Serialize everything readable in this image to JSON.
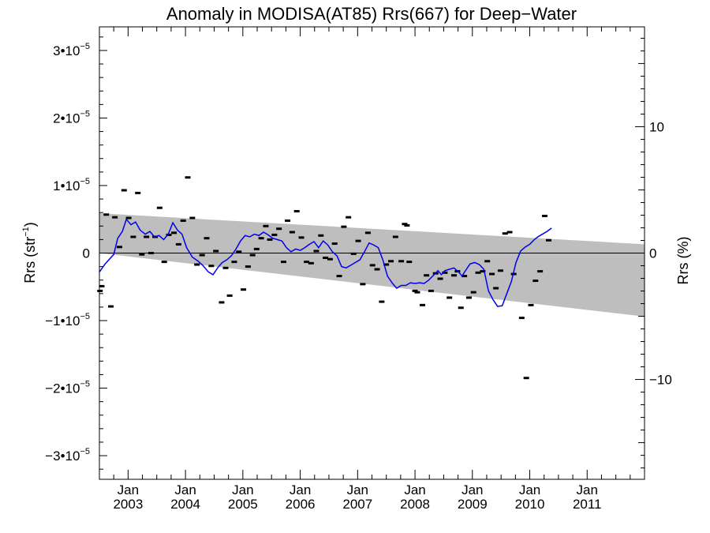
{
  "chart_data": {
    "type": "scatter",
    "title": "Anomaly in MODISA(AT85) Rrs(667) for Deep−Water",
    "ylabel": "Rrs (str",
    "ylabel_sup": "−1",
    "ylabel_tail": ")",
    "y2label": "Rrs (%)",
    "xlim": [
      2002.5,
      2012.0
    ],
    "ylim": [
      -3.35e-05,
      3.35e-05
    ],
    "y2lim": [
      -17.9,
      17.9
    ],
    "grid": false,
    "x_ticks": [
      {
        "line1": "Jan",
        "line2": "2003",
        "x": 2003.0
      },
      {
        "line1": "Jan",
        "line2": "2004",
        "x": 2004.0
      },
      {
        "line1": "Jan",
        "line2": "2005",
        "x": 2005.0
      },
      {
        "line1": "Jan",
        "line2": "2006",
        "x": 2006.0
      },
      {
        "line1": "Jan",
        "line2": "2007",
        "x": 2007.0
      },
      {
        "line1": "Jan",
        "line2": "2008",
        "x": 2008.0
      },
      {
        "line1": "Jan",
        "line2": "2009",
        "x": 2009.0
      },
      {
        "line1": "Jan",
        "line2": "2010",
        "x": 2010.0
      },
      {
        "line1": "Jan",
        "line2": "2011",
        "x": 2011.0
      }
    ],
    "y_ticks": [
      {
        "value": 3e-05,
        "mant": "3•10",
        "exp": "−5"
      },
      {
        "value": 2e-05,
        "mant": "2•10",
        "exp": "−5"
      },
      {
        "value": 1e-05,
        "mant": "1•10",
        "exp": "−5"
      },
      {
        "value": 0,
        "mant": "0",
        "exp": ""
      },
      {
        "value": -1e-05,
        "mant": "−1•10",
        "exp": "−5"
      },
      {
        "value": -2e-05,
        "mant": "−2•10",
        "exp": "−5"
      },
      {
        "value": -3e-05,
        "mant": "−3•10",
        "exp": "−5"
      }
    ],
    "y2_ticks": [
      {
        "value": 10,
        "label": "10"
      },
      {
        "value": 0,
        "label": "0"
      },
      {
        "value": -10,
        "label": "−10"
      }
    ],
    "band": {
      "color": "#bebebe",
      "upper": [
        [
          2002.5,
          5.9e-06
        ],
        [
          2012.0,
          1.3e-06
        ]
      ],
      "lower": [
        [
          2002.5,
          0.0
        ],
        [
          2012.0,
          -9.4e-06
        ]
      ]
    },
    "zero_line": 0,
    "series": [
      {
        "kind": "scatter",
        "color": "#000000",
        "points": [
          [
            2002.51,
            -5.6e-06
          ],
          [
            2002.54,
            -4.9e-06
          ],
          [
            2002.62,
            5.7e-06
          ],
          [
            2002.7,
            -7.9e-06
          ],
          [
            2002.77,
            5.3e-06
          ],
          [
            2002.85,
            9e-07
          ],
          [
            2002.93,
            9.3e-06
          ],
          [
            2003.01,
            5.2e-06
          ],
          [
            2003.09,
            2.4e-06
          ],
          [
            2003.17,
            8.9e-06
          ],
          [
            2003.24,
            -2e-07
          ],
          [
            2003.32,
            2.4e-06
          ],
          [
            2003.4,
            0
          ],
          [
            2003.47,
            2.4e-06
          ],
          [
            2003.55,
            6.7e-06
          ],
          [
            2003.63,
            -1.3e-06
          ],
          [
            2003.71,
            2.7e-06
          ],
          [
            2003.8,
            3e-06
          ],
          [
            2003.88,
            1.3e-06
          ],
          [
            2003.96,
            4.8e-06
          ],
          [
            2004.04,
            1.12e-05
          ],
          [
            2004.12,
            5.2e-06
          ],
          [
            2004.2,
            -1.7e-06
          ],
          [
            2004.29,
            -3e-07
          ],
          [
            2004.37,
            2.2e-06
          ],
          [
            2004.45,
            -1.9e-06
          ],
          [
            2004.53,
            3e-07
          ],
          [
            2004.63,
            -7.3e-06
          ],
          [
            2004.7,
            -2.2e-06
          ],
          [
            2004.77,
            -6.3e-06
          ],
          [
            2004.85,
            -1.3e-06
          ],
          [
            2004.93,
            2e-07
          ],
          [
            2005.01,
            -5.4e-06
          ],
          [
            2005.09,
            -2e-06
          ],
          [
            2005.17,
            -3e-07
          ],
          [
            2005.24,
            6e-07
          ],
          [
            2005.32,
            2.2e-06
          ],
          [
            2005.4,
            4e-06
          ],
          [
            2005.47,
            2e-06
          ],
          [
            2005.55,
            2.7e-06
          ],
          [
            2005.63,
            3.6e-06
          ],
          [
            2005.71,
            -1.3e-06
          ],
          [
            2005.78,
            4.8e-06
          ],
          [
            2005.86,
            3.1e-06
          ],
          [
            2005.94,
            6.2e-06
          ],
          [
            2006.02,
            2.3e-06
          ],
          [
            2006.11,
            -1.3e-06
          ],
          [
            2006.19,
            -1.5e-06
          ],
          [
            2006.28,
            3e-07
          ],
          [
            2006.36,
            2.6e-06
          ],
          [
            2006.44,
            -7e-07
          ],
          [
            2006.52,
            -9e-07
          ],
          [
            2006.6,
            1.4e-06
          ],
          [
            2006.68,
            -3.4e-06
          ],
          [
            2006.76,
            3.9e-06
          ],
          [
            2006.84,
            5.3e-06
          ],
          [
            2006.93,
            -1e-07
          ],
          [
            2007.01,
            1.8e-06
          ],
          [
            2007.09,
            -4.6e-06
          ],
          [
            2007.18,
            3e-06
          ],
          [
            2007.26,
            -1.8e-06
          ],
          [
            2007.34,
            -2.4e-06
          ],
          [
            2007.42,
            -7.2e-06
          ],
          [
            2007.5,
            -1.7e-06
          ],
          [
            2007.58,
            -1.2e-06
          ],
          [
            2007.66,
            2.4e-06
          ],
          [
            2007.76,
            -1.2e-06
          ],
          [
            2007.82,
            4.3e-06
          ],
          [
            2007.86,
            4.1e-06
          ],
          [
            2007.9,
            -1.3e-06
          ],
          [
            2008.0,
            -5.6e-06
          ],
          [
            2008.04,
            -5.8e-06
          ],
          [
            2008.13,
            -7.7e-06
          ],
          [
            2008.2,
            -3.3e-06
          ],
          [
            2008.28,
            -5.6e-06
          ],
          [
            2008.36,
            -3e-06
          ],
          [
            2008.44,
            -3.8e-06
          ],
          [
            2008.52,
            -2.9e-06
          ],
          [
            2008.6,
            -6.6e-06
          ],
          [
            2008.68,
            -3.3e-06
          ],
          [
            2008.74,
            -2.7e-06
          ],
          [
            2008.8,
            -8.1e-06
          ],
          [
            2008.86,
            -3.4e-06
          ],
          [
            2008.94,
            -6.6e-06
          ],
          [
            2009.02,
            -5.8e-06
          ],
          [
            2009.1,
            -2.9e-06
          ],
          [
            2009.18,
            -2.7e-06
          ],
          [
            2009.26,
            -1.2e-06
          ],
          [
            2009.34,
            -3.1e-06
          ],
          [
            2009.41,
            -5.2e-06
          ],
          [
            2009.49,
            -2.6e-06
          ],
          [
            2009.57,
            2.9e-06
          ],
          [
            2009.65,
            3.1e-06
          ],
          [
            2009.72,
            -3.1e-06
          ],
          [
            2009.86,
            -9.6e-06
          ],
          [
            2009.94,
            -1.85e-05
          ],
          [
            2010.02,
            -7.7e-06
          ],
          [
            2010.1,
            -4.1e-06
          ],
          [
            2010.18,
            -2.7e-06
          ],
          [
            2010.26,
            5.5e-06
          ],
          [
            2010.33,
            1.9e-06
          ]
        ]
      },
      {
        "kind": "line",
        "color": "#0000ee",
        "points": [
          [
            2002.5,
            -2.8e-06
          ],
          [
            2002.6,
            -1.6e-06
          ],
          [
            2002.75,
            -2e-07
          ],
          [
            2002.82,
            2.2e-06
          ],
          [
            2002.9,
            3.2e-06
          ],
          [
            2002.97,
            5e-06
          ],
          [
            2003.05,
            4.2e-06
          ],
          [
            2003.13,
            4.6e-06
          ],
          [
            2003.21,
            3.4e-06
          ],
          [
            2003.3,
            2.8e-06
          ],
          [
            2003.38,
            3.2e-06
          ],
          [
            2003.46,
            2.4e-06
          ],
          [
            2003.54,
            2.6e-06
          ],
          [
            2003.62,
            2e-06
          ],
          [
            2003.7,
            2.8e-06
          ],
          [
            2003.78,
            4.5e-06
          ],
          [
            2003.86,
            3.4e-06
          ],
          [
            2003.94,
            2.8e-06
          ],
          [
            2004.02,
            8e-07
          ],
          [
            2004.12,
            -6e-07
          ],
          [
            2004.22,
            -1.2e-06
          ],
          [
            2004.3,
            -1.8e-06
          ],
          [
            2004.4,
            -2.8e-06
          ],
          [
            2004.48,
            -3.2e-06
          ],
          [
            2004.56,
            -2.2e-06
          ],
          [
            2004.64,
            -1.4e-06
          ],
          [
            2004.72,
            -1e-06
          ],
          [
            2004.8,
            -4e-07
          ],
          [
            2004.88,
            6e-07
          ],
          [
            2004.96,
            1.8e-06
          ],
          [
            2005.04,
            2.6e-06
          ],
          [
            2005.12,
            2.4e-06
          ],
          [
            2005.2,
            2.8e-06
          ],
          [
            2005.28,
            2.6e-06
          ],
          [
            2005.36,
            3.1e-06
          ],
          [
            2005.44,
            2.7e-06
          ],
          [
            2005.52,
            2.2e-06
          ],
          [
            2005.6,
            2e-06
          ],
          [
            2005.68,
            1.8e-06
          ],
          [
            2005.76,
            8e-07
          ],
          [
            2005.84,
            2e-07
          ],
          [
            2005.92,
            6e-07
          ],
          [
            2006.0,
            4e-07
          ],
          [
            2006.08,
            8e-07
          ],
          [
            2006.16,
            1.3e-06
          ],
          [
            2006.24,
            1.7e-06
          ],
          [
            2006.32,
            8e-07
          ],
          [
            2006.4,
            1.8e-06
          ],
          [
            2006.48,
            1.2e-06
          ],
          [
            2006.56,
            2e-07
          ],
          [
            2006.64,
            -4e-07
          ],
          [
            2006.72,
            -2e-06
          ],
          [
            2006.8,
            -2.2e-06
          ],
          [
            2006.88,
            -1.8e-06
          ],
          [
            2006.96,
            -1.4e-06
          ],
          [
            2007.04,
            -1e-06
          ],
          [
            2007.12,
            2e-07
          ],
          [
            2007.2,
            1.5e-06
          ],
          [
            2007.28,
            1.2e-06
          ],
          [
            2007.36,
            8e-07
          ],
          [
            2007.44,
            -1e-06
          ],
          [
            2007.52,
            -3.4e-06
          ],
          [
            2007.6,
            -4.4e-06
          ],
          [
            2007.68,
            -5.2e-06
          ],
          [
            2007.76,
            -4.8e-06
          ],
          [
            2007.84,
            -4.8e-06
          ],
          [
            2007.92,
            -4.4e-06
          ],
          [
            2008.0,
            -4.5e-06
          ],
          [
            2008.08,
            -4.4e-06
          ],
          [
            2008.16,
            -4.5e-06
          ],
          [
            2008.24,
            -4e-06
          ],
          [
            2008.32,
            -3.3e-06
          ],
          [
            2008.4,
            -2.6e-06
          ],
          [
            2008.46,
            -3.2e-06
          ],
          [
            2008.52,
            -2.6e-06
          ],
          [
            2008.6,
            -2.4e-06
          ],
          [
            2008.68,
            -2.2e-06
          ],
          [
            2008.76,
            -2.8e-06
          ],
          [
            2008.82,
            -3.4e-06
          ],
          [
            2008.88,
            -2.6e-06
          ],
          [
            2008.96,
            -1.6e-06
          ],
          [
            2009.04,
            -1.4e-06
          ],
          [
            2009.12,
            -1.7e-06
          ],
          [
            2009.2,
            -2.4e-06
          ],
          [
            2009.28,
            -5.6e-06
          ],
          [
            2009.36,
            -6.9e-06
          ],
          [
            2009.44,
            -7.9e-06
          ],
          [
            2009.52,
            -7.8e-06
          ],
          [
            2009.6,
            -6e-06
          ],
          [
            2009.68,
            -4.2e-06
          ],
          [
            2009.76,
            -1.4e-06
          ],
          [
            2009.84,
            3e-07
          ],
          [
            2009.92,
            9e-07
          ],
          [
            2010.0,
            1.3e-06
          ],
          [
            2010.08,
            2e-06
          ],
          [
            2010.14,
            2.4e-06
          ],
          [
            2010.22,
            2.8e-06
          ],
          [
            2010.3,
            3.2e-06
          ],
          [
            2010.38,
            3.7e-06
          ]
        ]
      }
    ]
  }
}
